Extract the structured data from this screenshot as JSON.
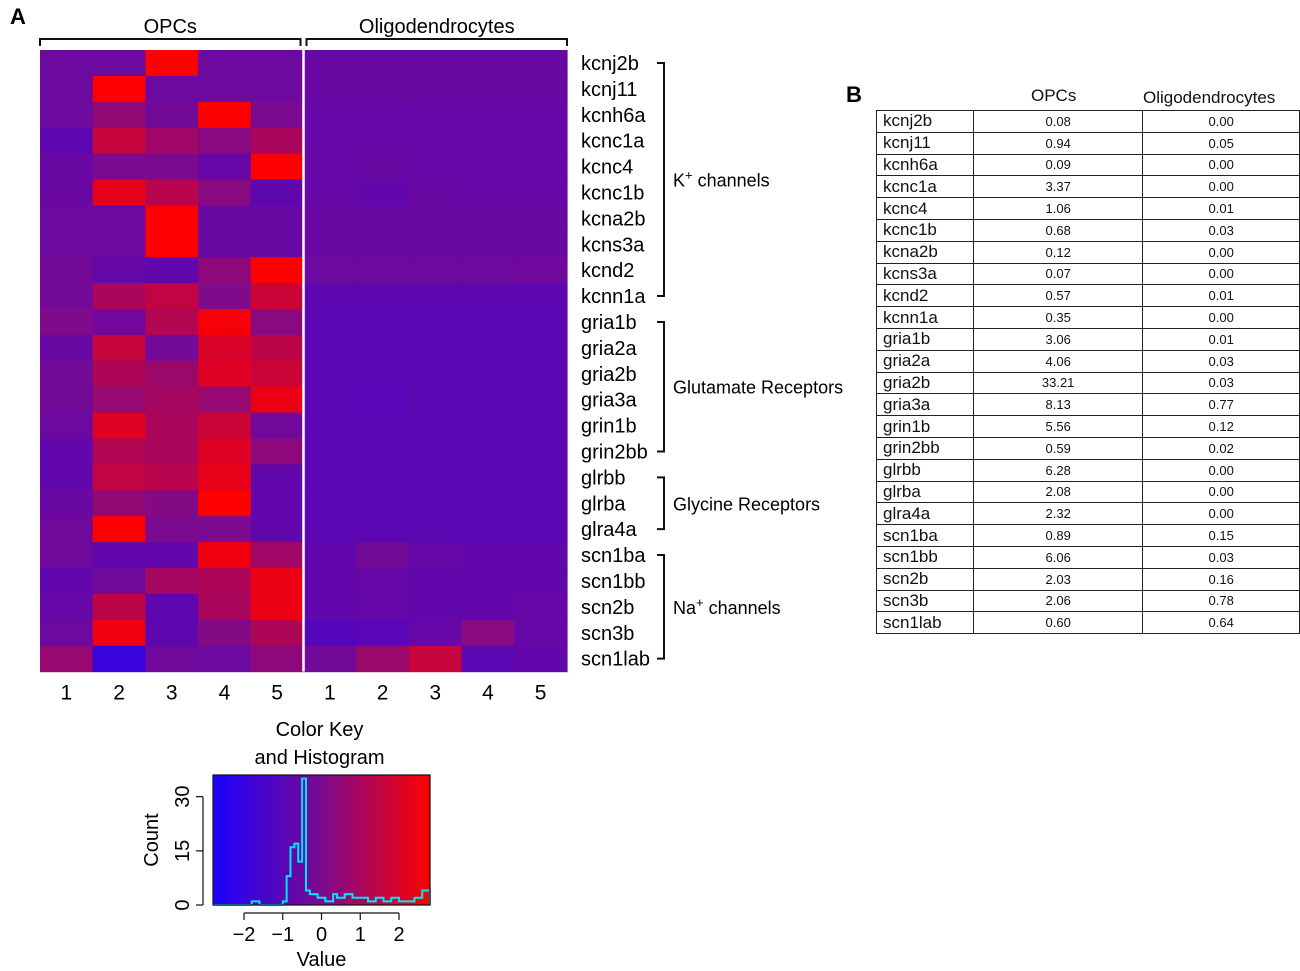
{
  "panel_labels": {
    "a": "A",
    "b": "B"
  },
  "chart_data": [
    {
      "type": "heatmap",
      "title": "",
      "group_labels": [
        "OPCs",
        "Oligodendrocytes"
      ],
      "columns": [
        "1",
        "2",
        "3",
        "4",
        "5",
        "1",
        "2",
        "3",
        "4",
        "5"
      ],
      "rows": [
        "kcnj2b",
        "kcnj11",
        "kcnh6a",
        "kcnc1a",
        "kcnc4",
        "kcnc1b",
        "kcna2b",
        "kcns3a",
        "kcnd2",
        "kcnn1a",
        "gria1b",
        "gria2a",
        "gria2b",
        "gria3a",
        "grin1b",
        "grin2bb",
        "glrbb",
        "glrba",
        "glra4a",
        "scn1ba",
        "scn1bb",
        "scn2b",
        "scn3b",
        "scn1lab"
      ],
      "row_groups": [
        {
          "label_pre": "K",
          "label_sup": "+",
          "label_post": " channels",
          "start": 0,
          "end": 9
        },
        {
          "label_pre": "Glutamate Receptors",
          "label_sup": "",
          "label_post": "",
          "start": 10,
          "end": 15
        },
        {
          "label_pre": "Glycine Receptors",
          "label_sup": "",
          "label_post": "",
          "start": 16,
          "end": 18
        },
        {
          "label_pre": "Na",
          "label_sup": "+",
          "label_post": " channels",
          "start": 19,
          "end": 23
        }
      ],
      "values": [
        [
          -0.4,
          -0.4,
          2.8,
          -0.4,
          -0.4,
          -0.5,
          -0.5,
          -0.5,
          -0.5,
          -0.5
        ],
        [
          -0.4,
          2.8,
          -0.4,
          -0.4,
          -0.4,
          -0.5,
          -0.5,
          -0.5,
          -0.5,
          -0.5
        ],
        [
          -0.4,
          0.5,
          -0.2,
          2.8,
          0.0,
          -0.6,
          -0.6,
          -0.6,
          -0.6,
          -0.6
        ],
        [
          -0.8,
          1.6,
          0.8,
          0.3,
          1.0,
          -0.6,
          -0.6,
          -0.6,
          -0.6,
          -0.6
        ],
        [
          -0.5,
          0.0,
          0.0,
          -0.6,
          2.8,
          -0.6,
          -0.5,
          -0.6,
          -0.6,
          -0.6
        ],
        [
          -0.5,
          2.3,
          1.3,
          0.3,
          -0.8,
          -0.6,
          -0.7,
          -0.5,
          -0.6,
          -0.6
        ],
        [
          -0.4,
          -0.4,
          2.8,
          -0.5,
          -0.5,
          -0.5,
          -0.5,
          -0.5,
          -0.5,
          -0.5
        ],
        [
          -0.4,
          -0.4,
          2.8,
          -0.5,
          -0.5,
          -0.5,
          -0.5,
          -0.5,
          -0.5,
          -0.5
        ],
        [
          -0.2,
          -0.6,
          -0.7,
          0.4,
          2.8,
          -0.4,
          -0.4,
          -0.4,
          -0.4,
          -0.3
        ],
        [
          -0.2,
          1.0,
          1.5,
          0.1,
          1.7,
          -0.8,
          -0.8,
          -0.8,
          -0.8,
          -0.8
        ],
        [
          0.1,
          -0.3,
          1.2,
          2.6,
          0.3,
          -0.9,
          -0.9,
          -0.9,
          -0.9,
          -0.9
        ],
        [
          -0.5,
          1.6,
          -0.2,
          2.0,
          1.4,
          -0.9,
          -0.9,
          -0.9,
          -0.9,
          -0.9
        ],
        [
          -0.2,
          1.1,
          0.7,
          2.1,
          1.7,
          -0.9,
          -0.9,
          -0.9,
          -0.9,
          -0.9
        ],
        [
          -0.2,
          0.6,
          0.9,
          0.6,
          2.4,
          -0.9,
          -1.0,
          -0.9,
          -0.9,
          -0.9
        ],
        [
          -0.4,
          2.1,
          1.0,
          1.7,
          -0.3,
          -0.9,
          -0.9,
          -0.9,
          -0.9,
          -0.9
        ],
        [
          -0.7,
          1.2,
          1.0,
          2.1,
          0.4,
          -0.9,
          -0.9,
          -0.9,
          -0.9,
          -0.9
        ],
        [
          -0.7,
          1.5,
          1.3,
          2.3,
          -0.7,
          -0.9,
          -0.9,
          -0.9,
          -0.9,
          -0.9
        ],
        [
          -0.5,
          0.5,
          0.2,
          2.8,
          -0.7,
          -0.9,
          -0.9,
          -0.9,
          -0.9,
          -0.9
        ],
        [
          -0.3,
          2.8,
          0.0,
          0.0,
          -0.7,
          -0.9,
          -0.9,
          -0.9,
          -0.9,
          -0.9
        ],
        [
          -0.3,
          -0.7,
          -0.7,
          2.5,
          0.8,
          -0.7,
          -0.2,
          -0.6,
          -0.7,
          -0.7
        ],
        [
          -0.7,
          -0.3,
          0.9,
          1.1,
          2.4,
          -0.7,
          -0.6,
          -0.7,
          -0.7,
          -0.7
        ],
        [
          -0.6,
          1.4,
          -0.8,
          1.0,
          2.4,
          -0.7,
          -0.6,
          -0.7,
          -0.7,
          -0.6
        ],
        [
          -0.4,
          2.5,
          -0.8,
          0.2,
          1.1,
          -1.1,
          -1.0,
          -0.6,
          0.3,
          -0.6
        ],
        [
          0.6,
          -1.9,
          -0.3,
          -0.4,
          0.4,
          -0.2,
          0.7,
          1.6,
          -0.9,
          -0.7
        ]
      ]
    },
    {
      "type": "histogram",
      "title_line1": "Color Key",
      "title_line2": "and Histogram",
      "xlabel": "Value",
      "ylabel": "Count",
      "xlim": [
        -2.8,
        2.8
      ],
      "ylim": [
        0,
        36
      ],
      "xticks": [
        -2,
        -1,
        0,
        1,
        2
      ],
      "xtick_labels": [
        "−2",
        "−1",
        "0",
        "1",
        "2"
      ],
      "yticks": [
        0,
        15,
        30
      ],
      "ytick_labels": [
        "0",
        "15",
        "30"
      ],
      "color_low": "#1a00ff",
      "color_mid": "#7a0a8f",
      "color_high": "#ff0000",
      "line_color": "#00e5ff",
      "bin_edges": [
        -2.8,
        -2.6,
        -2.4,
        -2.2,
        -2.0,
        -1.8,
        -1.6,
        -1.4,
        -1.2,
        -1.0,
        -0.9,
        -0.8,
        -0.7,
        -0.6,
        -0.5,
        -0.4,
        -0.3,
        -0.2,
        -0.1,
        0.0,
        0.1,
        0.2,
        0.3,
        0.4,
        0.5,
        0.6,
        0.8,
        1.0,
        1.2,
        1.4,
        1.6,
        1.8,
        2.0,
        2.2,
        2.4,
        2.6,
        2.8
      ],
      "counts": [
        0,
        0,
        0,
        0,
        0,
        1,
        0,
        0,
        0,
        1,
        8,
        16,
        17,
        12,
        35,
        4,
        3,
        3,
        2,
        2,
        1,
        1,
        3,
        2,
        2,
        3,
        2,
        2,
        1,
        2,
        1,
        2,
        1,
        1,
        2,
        4
      ]
    }
  ],
  "table": {
    "headers": {
      "gene": "",
      "opcs": "OPCs",
      "oligo": "Oligodendrocytes"
    },
    "rows": [
      {
        "gene": "kcnj2b",
        "opcs": "0.08",
        "oligo": "0.00"
      },
      {
        "gene": "kcnj11",
        "opcs": "0.94",
        "oligo": "0.05"
      },
      {
        "gene": "kcnh6a",
        "opcs": "0.09",
        "oligo": "0.00"
      },
      {
        "gene": "kcnc1a",
        "opcs": "3.37",
        "oligo": "0.00"
      },
      {
        "gene": "kcnc4",
        "opcs": "1.06",
        "oligo": "0.01"
      },
      {
        "gene": "kcnc1b",
        "opcs": "0.68",
        "oligo": "0.03"
      },
      {
        "gene": "kcna2b",
        "opcs": "0.12",
        "oligo": "0.00"
      },
      {
        "gene": "kcns3a",
        "opcs": "0.07",
        "oligo": "0.00"
      },
      {
        "gene": "kcnd2",
        "opcs": "0.57",
        "oligo": "0.01"
      },
      {
        "gene": "kcnn1a",
        "opcs": "0.35",
        "oligo": "0.00"
      },
      {
        "gene": "gria1b",
        "opcs": "3.06",
        "oligo": "0.01"
      },
      {
        "gene": "gria2a",
        "opcs": "4.06",
        "oligo": "0.03"
      },
      {
        "gene": "gria2b",
        "opcs": "33.21",
        "oligo": "0.03"
      },
      {
        "gene": "gria3a",
        "opcs": "8.13",
        "oligo": "0.77"
      },
      {
        "gene": "grin1b",
        "opcs": "5.56",
        "oligo": "0.12"
      },
      {
        "gene": "grin2bb",
        "opcs": "0.59",
        "oligo": "0.02"
      },
      {
        "gene": "glrbb",
        "opcs": "6.28",
        "oligo": "0.00"
      },
      {
        "gene": "glrba",
        "opcs": "2.08",
        "oligo": "0.00"
      },
      {
        "gene": "glra4a",
        "opcs": "2.32",
        "oligo": "0.00"
      },
      {
        "gene": "scn1ba",
        "opcs": "0.89",
        "oligo": "0.15"
      },
      {
        "gene": "scn1bb",
        "opcs": "6.06",
        "oligo": "0.03"
      },
      {
        "gene": "scn2b",
        "opcs": "2.03",
        "oligo": "0.16"
      },
      {
        "gene": "scn3b",
        "opcs": "2.06",
        "oligo": "0.78"
      },
      {
        "gene": "scn1lab",
        "opcs": "0.60",
        "oligo": "0.64"
      }
    ]
  }
}
